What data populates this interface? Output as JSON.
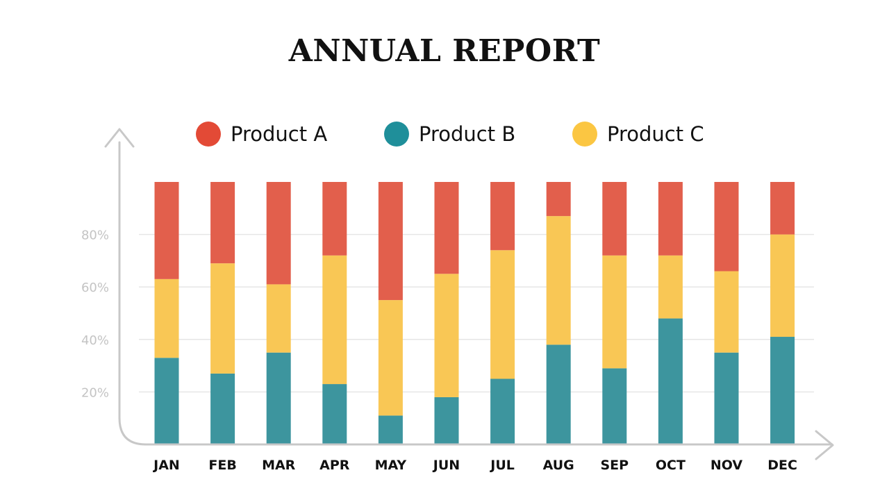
{
  "title": "ANNUAL REPORT",
  "legend": [
    {
      "label": "Product A",
      "color": "#e34a36"
    },
    {
      "label": "Product B",
      "color": "#1f8f9a"
    },
    {
      "label": "Product C",
      "color": "#fbc642"
    }
  ],
  "chart_data": {
    "type": "bar",
    "stacked": true,
    "categories": [
      "JAN",
      "FEB",
      "MAR",
      "APR",
      "MAY",
      "JUN",
      "JUL",
      "AUG",
      "SEP",
      "OCT",
      "NOV",
      "DEC"
    ],
    "series": [
      {
        "name": "Product B",
        "color": "#3d959e",
        "values": [
          33,
          27,
          35,
          23,
          11,
          18,
          25,
          38,
          29,
          48,
          35,
          41
        ]
      },
      {
        "name": "Product C",
        "color": "#f9c755",
        "values": [
          30,
          42,
          26,
          49,
          44,
          47,
          49,
          49,
          43,
          24,
          31,
          39
        ]
      },
      {
        "name": "Product A",
        "color": "#e25f4c",
        "values": [
          37,
          31,
          39,
          28,
          45,
          35,
          26,
          13,
          28,
          28,
          34,
          20
        ]
      }
    ],
    "yticks": [
      "20%",
      "40%",
      "60%",
      "80%"
    ],
    "ytick_values": [
      20,
      40,
      60,
      80
    ],
    "ylim": [
      0,
      100
    ],
    "grid": true,
    "legend_position": "top"
  }
}
